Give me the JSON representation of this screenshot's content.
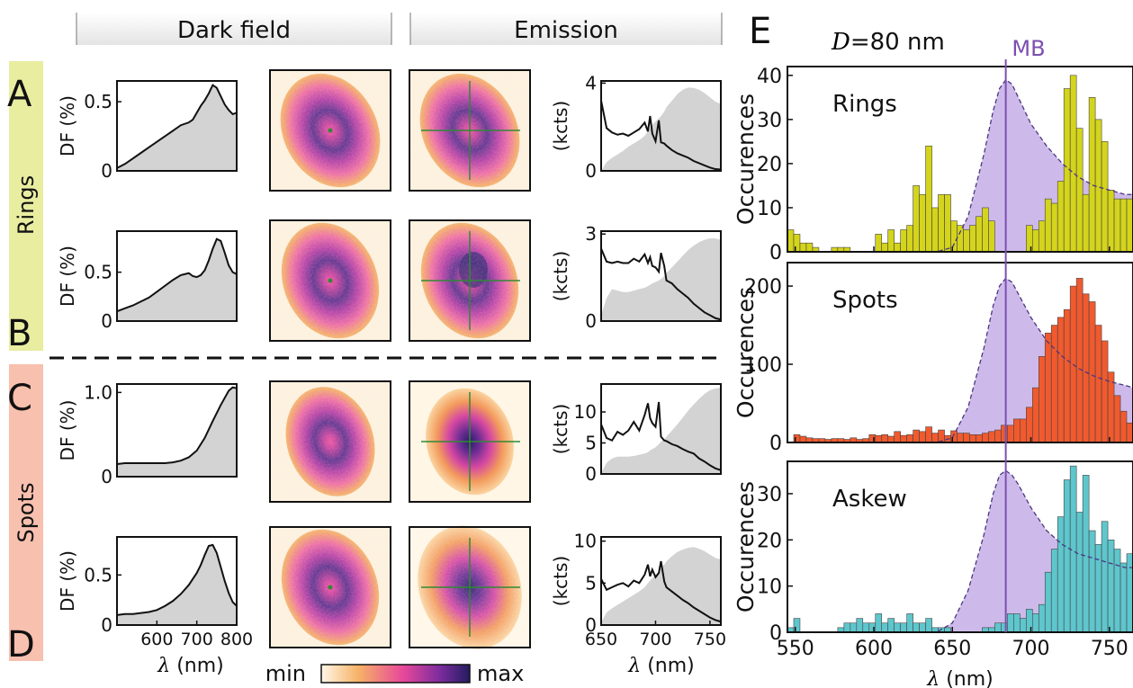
{
  "labels": {
    "header_darkfield": "Dark field",
    "header_emission": "Emission",
    "panel_A": "A",
    "panel_B": "B",
    "panel_C": "C",
    "panel_D": "D",
    "panel_E": "E",
    "group_rings": "Rings",
    "group_spots": "Spots",
    "colorbar_min": "min",
    "colorbar_max": "max",
    "df_ylabel": "DF (%)",
    "em_ylabel": "(kcts)",
    "lambda_nm": "λ (nm)",
    "diameter_sym": "D",
    "diameter_val": "=80 nm",
    "mb_label": "MB",
    "hist_ylabel": "Occurences"
  },
  "colors": {
    "rings_band": "#e6ec9c",
    "spots_band": "#f7b7a6",
    "header_gray": "#e9e9e9",
    "spectrum_fill": "#d3d3d3",
    "mb_line": "#7b4fb0",
    "mb_fill": "#c9b3e8",
    "rings_bar": "#d4d41c",
    "spots_bar": "#f05a2e",
    "askew_bar": "#5ec6cc",
    "map_low": "#fff6e6",
    "map_mid1": "#f3a35c",
    "map_mid2": "#e2459a",
    "map_high": "#5a2a8a",
    "map_max": "#211d5e",
    "cross": "#2f8a35"
  },
  "chart_data": [
    {
      "id": "A-darkfield",
      "type": "area",
      "xlim": [
        500,
        800
      ],
      "ylim": [
        0,
        0.65
      ],
      "yticks": [
        0,
        0.5
      ],
      "ytick_labels": [
        "0",
        "0.5"
      ],
      "x": [
        500,
        520,
        540,
        560,
        580,
        600,
        620,
        640,
        660,
        680,
        690,
        700,
        710,
        720,
        730,
        740,
        750,
        760,
        770,
        780,
        790,
        800
      ],
      "y": [
        0.02,
        0.05,
        0.09,
        0.13,
        0.17,
        0.21,
        0.25,
        0.29,
        0.33,
        0.35,
        0.37,
        0.42,
        0.47,
        0.51,
        0.56,
        0.62,
        0.6,
        0.54,
        0.48,
        0.44,
        0.41,
        0.42
      ]
    },
    {
      "id": "B-darkfield",
      "type": "area",
      "xlim": [
        500,
        800
      ],
      "ylim": [
        0,
        0.92
      ],
      "yticks": [
        0,
        0.5
      ],
      "ytick_labels": [
        "0",
        "0.5"
      ],
      "x": [
        500,
        520,
        540,
        560,
        580,
        600,
        620,
        640,
        660,
        680,
        690,
        700,
        710,
        720,
        730,
        740,
        750,
        760,
        770,
        780,
        790,
        800
      ],
      "y": [
        0.1,
        0.13,
        0.16,
        0.2,
        0.24,
        0.3,
        0.36,
        0.42,
        0.47,
        0.49,
        0.46,
        0.45,
        0.47,
        0.52,
        0.62,
        0.74,
        0.84,
        0.82,
        0.7,
        0.57,
        0.5,
        0.48
      ]
    },
    {
      "id": "C-darkfield",
      "type": "area",
      "xlim": [
        500,
        800
      ],
      "ylim": [
        0,
        1.1
      ],
      "yticks": [
        0,
        1.0
      ],
      "ytick_labels": [
        "0",
        "1.0"
      ],
      "x": [
        500,
        520,
        540,
        560,
        580,
        600,
        620,
        640,
        660,
        680,
        700,
        720,
        740,
        760,
        780,
        790,
        800
      ],
      "y": [
        0.15,
        0.16,
        0.16,
        0.16,
        0.16,
        0.16,
        0.16,
        0.17,
        0.19,
        0.23,
        0.31,
        0.46,
        0.66,
        0.85,
        1.02,
        1.06,
        1.05
      ]
    },
    {
      "id": "D-darkfield",
      "type": "area",
      "xlim": [
        500,
        800
      ],
      "ylim": [
        0,
        0.88
      ],
      "yticks": [
        0,
        0.5
      ],
      "ytick_labels": [
        "0",
        "0.5"
      ],
      "xticks": [
        600,
        700,
        800
      ],
      "xtick_labels": [
        "600",
        "700",
        "800"
      ],
      "x": [
        500,
        520,
        540,
        560,
        580,
        600,
        620,
        640,
        660,
        680,
        700,
        710,
        720,
        730,
        740,
        750,
        760,
        770,
        780,
        790,
        800
      ],
      "y": [
        0.1,
        0.11,
        0.11,
        0.12,
        0.13,
        0.15,
        0.19,
        0.24,
        0.31,
        0.4,
        0.52,
        0.6,
        0.7,
        0.79,
        0.8,
        0.72,
        0.58,
        0.44,
        0.32,
        0.23,
        0.19
      ]
    },
    {
      "id": "A-emission",
      "type": "line+area",
      "xlim": [
        650,
        760
      ],
      "ylim": [
        0,
        4.1
      ],
      "yticks": [
        0,
        4
      ],
      "ytick_labels": [
        "0",
        "4"
      ],
      "x": [
        650,
        655,
        660,
        665,
        670,
        675,
        680,
        685,
        690,
        693,
        695,
        697,
        700,
        703,
        705,
        708,
        710,
        715,
        720,
        725,
        730,
        735,
        740,
        745,
        750,
        755,
        760
      ],
      "line": [
        3.2,
        1.95,
        1.75,
        1.65,
        1.7,
        1.6,
        1.75,
        1.9,
        2.2,
        1.8,
        2.5,
        1.7,
        1.35,
        2.3,
        1.3,
        1.25,
        1.15,
        0.95,
        0.8,
        0.7,
        0.6,
        0.45,
        0.35,
        0.25,
        0.15,
        0.08,
        0.06
      ],
      "area": [
        0.0,
        0.4,
        0.6,
        0.75,
        0.9,
        1.1,
        1.25,
        1.4,
        1.6,
        1.8,
        1.95,
        2.1,
        2.25,
        2.4,
        2.5,
        2.7,
        2.9,
        3.2,
        3.5,
        3.7,
        3.8,
        3.78,
        3.7,
        3.55,
        3.35,
        3.15,
        3.05
      ]
    },
    {
      "id": "B-emission",
      "type": "line+area",
      "xlim": [
        650,
        760
      ],
      "ylim": [
        0,
        3.1
      ],
      "yticks": [
        0,
        3
      ],
      "ytick_labels": [
        "0",
        "3"
      ],
      "x": [
        650,
        655,
        660,
        665,
        670,
        675,
        680,
        685,
        690,
        693,
        695,
        697,
        700,
        703,
        705,
        708,
        710,
        715,
        720,
        725,
        730,
        735,
        740,
        745,
        750,
        755,
        760
      ],
      "line": [
        2.5,
        2.05,
        2.0,
        2.05,
        2.0,
        2.0,
        2.15,
        2.05,
        2.3,
        2.0,
        2.2,
        1.9,
        1.85,
        1.7,
        2.35,
        1.9,
        1.4,
        1.3,
        1.1,
        0.95,
        0.8,
        0.6,
        0.45,
        0.3,
        0.2,
        0.1,
        0.05
      ],
      "area": [
        0.2,
        0.8,
        1.1,
        1.05,
        1.0,
        1.0,
        1.05,
        1.1,
        1.15,
        1.2,
        1.25,
        1.3,
        1.35,
        1.4,
        1.45,
        1.55,
        1.65,
        1.85,
        2.05,
        2.25,
        2.45,
        2.6,
        2.72,
        2.8,
        2.85,
        2.85,
        2.8
      ]
    },
    {
      "id": "C-emission",
      "type": "line+area",
      "xlim": [
        650,
        760
      ],
      "ylim": [
        0,
        14.5
      ],
      "yticks": [
        0,
        5,
        10
      ],
      "ytick_labels": [
        "0",
        "5",
        "10"
      ],
      "x": [
        650,
        655,
        660,
        665,
        670,
        675,
        680,
        685,
        690,
        693,
        695,
        697,
        700,
        703,
        705,
        708,
        710,
        715,
        720,
        725,
        730,
        735,
        740,
        745,
        750,
        755,
        760
      ],
      "line": [
        8.0,
        5.8,
        5.4,
        6.8,
        6.3,
        7.0,
        8.4,
        7.0,
        9.5,
        11.4,
        9.0,
        8.2,
        7.6,
        11.6,
        6.0,
        5.4,
        5.3,
        4.8,
        4.5,
        4.0,
        3.6,
        3.3,
        2.5,
        2.0,
        1.4,
        0.9,
        0.6
      ],
      "area": [
        0.2,
        1.8,
        2.5,
        2.8,
        2.8,
        2.8,
        2.9,
        3.1,
        3.3,
        3.5,
        3.8,
        4.0,
        4.3,
        4.8,
        5.2,
        5.6,
        6.0,
        7.0,
        8.0,
        9.1,
        10.2,
        11.2,
        12.1,
        12.9,
        13.5,
        13.8,
        13.9
      ]
    },
    {
      "id": "D-emission",
      "type": "line+area",
      "xlim": [
        650,
        760
      ],
      "ylim": [
        0,
        10.5
      ],
      "yticks": [
        0,
        5,
        10
      ],
      "ytick_labels": [
        "0",
        "5",
        "10"
      ],
      "xticks": [
        650,
        700,
        750
      ],
      "xtick_labels": [
        "650",
        "700",
        "750"
      ],
      "x": [
        650,
        655,
        660,
        665,
        670,
        675,
        680,
        685,
        690,
        693,
        695,
        697,
        700,
        703,
        705,
        708,
        710,
        715,
        720,
        725,
        730,
        735,
        740,
        745,
        750,
        755,
        760
      ],
      "line": [
        5.5,
        4.2,
        4.5,
        4.8,
        5.0,
        4.6,
        5.3,
        5.0,
        6.0,
        7.2,
        5.8,
        6.6,
        5.7,
        6.2,
        7.6,
        5.2,
        4.5,
        4.0,
        3.5,
        3.0,
        2.6,
        2.1,
        1.7,
        1.3,
        0.9,
        0.6,
        0.4
      ],
      "area": [
        0.3,
        1.5,
        2.0,
        2.4,
        2.8,
        3.2,
        3.6,
        4.0,
        4.5,
        5.0,
        5.3,
        5.6,
        6.0,
        6.4,
        6.8,
        7.2,
        7.6,
        8.2,
        8.7,
        9.0,
        9.2,
        9.3,
        9.1,
        8.8,
        8.4,
        8.0,
        7.8
      ]
    },
    {
      "id": "E-rings",
      "type": "bar",
      "title": "Rings",
      "xlim": [
        545,
        765
      ],
      "ylim": [
        0,
        42
      ],
      "yticks": [
        0,
        10,
        20,
        30,
        40
      ],
      "ytick_labels": [
        "0",
        "10",
        "20",
        "30",
        "40"
      ],
      "bin_width": 4,
      "bin_starts": [
        545,
        549,
        553,
        557,
        561,
        565,
        569,
        573,
        577,
        581,
        585,
        589,
        593,
        597,
        601,
        605,
        609,
        613,
        617,
        621,
        625,
        629,
        633,
        637,
        641,
        645,
        649,
        653,
        657,
        661,
        665,
        669,
        673,
        677,
        681,
        685,
        689,
        693,
        697,
        701,
        705,
        709,
        713,
        717,
        721,
        725,
        729,
        733,
        737,
        741,
        745,
        749,
        753,
        757,
        761
      ],
      "values": [
        5,
        4,
        2,
        2,
        1,
        0,
        0,
        1,
        1,
        1,
        0,
        0,
        0,
        0,
        4,
        2,
        5,
        2,
        5,
        6,
        15,
        13,
        24,
        10,
        13,
        13,
        7,
        6,
        5,
        6,
        8,
        10,
        7,
        0,
        0,
        0,
        0,
        0,
        6,
        5,
        7,
        12,
        11,
        16,
        37,
        40,
        28,
        13,
        35,
        30,
        25,
        14,
        12,
        12,
        12
      ],
      "mb_center": 684,
      "mb_curve_x": [
        545,
        570,
        600,
        620,
        640,
        650,
        660,
        670,
        676,
        680,
        684,
        688,
        692,
        700,
        710,
        720,
        730,
        740,
        750,
        760,
        765
      ],
      "mb_curve_y": [
        0,
        0,
        0,
        0,
        0,
        1,
        8,
        22,
        32,
        37,
        39,
        38,
        35,
        29,
        24,
        20,
        17,
        15,
        14,
        13,
        13
      ]
    },
    {
      "id": "E-spots",
      "type": "bar",
      "title": "Spots",
      "xlim": [
        545,
        765
      ],
      "ylim": [
        0,
        230
      ],
      "yticks": [
        0,
        100,
        200
      ],
      "ytick_labels": [
        "0",
        "100",
        "200"
      ],
      "bin_width": 4,
      "bin_starts": [
        545,
        549,
        553,
        557,
        561,
        565,
        569,
        573,
        577,
        581,
        585,
        589,
        593,
        597,
        601,
        605,
        609,
        613,
        617,
        621,
        625,
        629,
        633,
        637,
        641,
        645,
        649,
        653,
        657,
        661,
        665,
        669,
        673,
        677,
        681,
        685,
        689,
        693,
        697,
        701,
        705,
        709,
        713,
        717,
        721,
        725,
        729,
        733,
        737,
        741,
        745,
        749,
        753,
        757,
        761
      ],
      "values": [
        0,
        10,
        8,
        6,
        5,
        5,
        4,
        5,
        5,
        4,
        6,
        4,
        5,
        10,
        9,
        10,
        8,
        14,
        9,
        10,
        16,
        14,
        20,
        12,
        16,
        9,
        15,
        12,
        12,
        10,
        10,
        12,
        14,
        16,
        22,
        22,
        30,
        30,
        45,
        70,
        110,
        140,
        150,
        160,
        170,
        200,
        210,
        190,
        180,
        150,
        130,
        90,
        60,
        40,
        25
      ],
      "mb_center": 684,
      "mb_curve_x": [
        545,
        570,
        600,
        620,
        640,
        650,
        660,
        670,
        676,
        680,
        684,
        688,
        692,
        700,
        710,
        720,
        730,
        740,
        750,
        760,
        765
      ],
      "mb_curve_y": [
        0,
        0,
        0,
        0,
        0,
        6,
        45,
        120,
        175,
        200,
        210,
        205,
        190,
        160,
        130,
        110,
        95,
        85,
        78,
        73,
        70
      ]
    },
    {
      "id": "E-askew",
      "type": "bar",
      "title": "Askew",
      "xlim": [
        545,
        765
      ],
      "ylim": [
        0,
        37
      ],
      "yticks": [
        0,
        10,
        20,
        30
      ],
      "ytick_labels": [
        "0",
        "10",
        "20",
        "30"
      ],
      "bin_width": 4,
      "bin_starts": [
        545,
        549,
        553,
        557,
        561,
        565,
        569,
        573,
        577,
        581,
        585,
        589,
        593,
        597,
        601,
        605,
        609,
        613,
        617,
        621,
        625,
        629,
        633,
        637,
        641,
        645,
        649,
        653,
        657,
        661,
        665,
        669,
        673,
        677,
        681,
        685,
        689,
        693,
        697,
        701,
        705,
        709,
        713,
        717,
        721,
        725,
        729,
        733,
        737,
        741,
        745,
        749,
        753,
        757,
        761
      ],
      "values": [
        1,
        3,
        0,
        0,
        0,
        0,
        0,
        0,
        1,
        2,
        2,
        3,
        2,
        2,
        4,
        2,
        3,
        2,
        2,
        4,
        2,
        2,
        3,
        1,
        1,
        1,
        0,
        0,
        0,
        0,
        0,
        1,
        1,
        2,
        2,
        4,
        4,
        3,
        5,
        4,
        6,
        13,
        18,
        25,
        33,
        36,
        26,
        34,
        22,
        19,
        24,
        20,
        18,
        15,
        17
      ],
      "mb_center": 684,
      "mb_curve_x": [
        545,
        570,
        600,
        620,
        640,
        650,
        660,
        670,
        676,
        680,
        684,
        688,
        692,
        700,
        710,
        720,
        730,
        740,
        750,
        760,
        765
      ],
      "mb_curve_y": [
        0,
        0,
        0,
        0,
        0,
        2,
        9,
        21,
        30,
        34,
        35,
        34,
        32,
        27,
        22,
        19,
        17,
        16,
        15,
        14,
        14
      ]
    },
    {
      "id": "E-xaxis",
      "xticks": [
        550,
        600,
        650,
        700,
        750
      ],
      "xtick_labels": [
        "550",
        "600",
        "650",
        "700",
        "750"
      ]
    }
  ]
}
